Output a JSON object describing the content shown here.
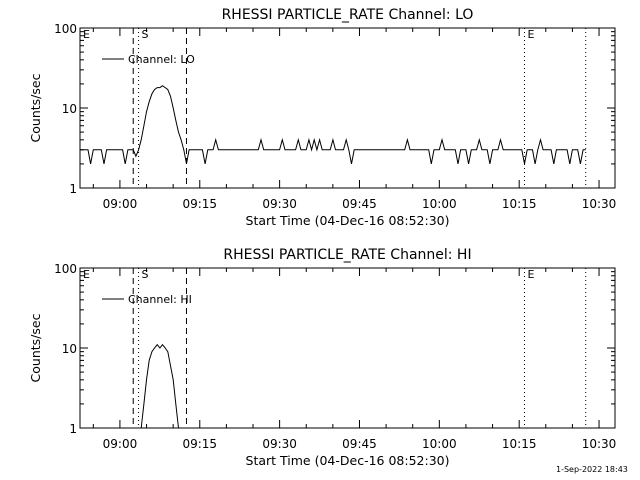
{
  "chart_data": [
    {
      "type": "line",
      "title": "RHESSI PARTICLE_RATE Channel: LO",
      "xlabel": "Start Time (04-Dec-16 08:52:30)",
      "ylabel": "Counts/sec",
      "y_scale": "log",
      "ylim": [
        1,
        100
      ],
      "xlim": [
        "08:52:30",
        "10:33:00"
      ],
      "xticks": [
        "09:00",
        "09:15",
        "09:30",
        "09:45",
        "10:00",
        "10:15",
        "10:30"
      ],
      "yticks": [
        "1",
        "10",
        "100"
      ],
      "legend": {
        "placement": "top-left",
        "entries": [
          "Channel: LO"
        ]
      },
      "markers": [
        {
          "label": "E",
          "time": "08:52:30",
          "style": "dotted"
        },
        {
          "label": "",
          "time": "09:02:30",
          "style": "dashed"
        },
        {
          "label": "S",
          "time": "09:03:30",
          "style": "dotted"
        },
        {
          "label": "",
          "time": "09:12:30",
          "style": "dashed"
        },
        {
          "label": "E",
          "time": "10:16:00",
          "style": "dotted"
        },
        {
          "label": "",
          "time": "10:27:30",
          "style": "dotted"
        }
      ],
      "series": [
        {
          "name": "Channel: LO",
          "points": [
            [
              "08:52:30",
              3
            ],
            [
              "08:54:00",
              3
            ],
            [
              "08:54:30",
              2
            ],
            [
              "08:55:00",
              3
            ],
            [
              "08:56:30",
              3
            ],
            [
              "08:57:00",
              2
            ],
            [
              "08:57:30",
              3
            ],
            [
              "09:00:30",
              3
            ],
            [
              "09:01:00",
              2
            ],
            [
              "09:01:30",
              3
            ],
            [
              "09:02:30",
              3
            ],
            [
              "09:03:00",
              2.5
            ],
            [
              "09:03:30",
              3
            ],
            [
              "09:04:00",
              4
            ],
            [
              "09:04:30",
              6
            ],
            [
              "09:05:00",
              9
            ],
            [
              "09:05:30",
              12
            ],
            [
              "09:06:00",
              15
            ],
            [
              "09:06:30",
              17
            ],
            [
              "09:07:00",
              18
            ],
            [
              "09:07:30",
              18
            ],
            [
              "09:08:00",
              19
            ],
            [
              "09:08:30",
              18
            ],
            [
              "09:09:00",
              17
            ],
            [
              "09:09:30",
              14
            ],
            [
              "09:10:00",
              10
            ],
            [
              "09:10:30",
              7
            ],
            [
              "09:11:00",
              5
            ],
            [
              "09:11:30",
              4
            ],
            [
              "09:12:00",
              3
            ],
            [
              "09:12:30",
              2
            ],
            [
              "09:13:00",
              3
            ],
            [
              "09:15:30",
              3
            ],
            [
              "09:16:00",
              2
            ],
            [
              "09:16:30",
              3
            ],
            [
              "09:17:30",
              3
            ],
            [
              "09:18:00",
              4
            ],
            [
              "09:18:30",
              3
            ],
            [
              "09:26:00",
              3
            ],
            [
              "09:26:30",
              4
            ],
            [
              "09:27:00",
              3
            ],
            [
              "09:30:00",
              3
            ],
            [
              "09:30:30",
              4
            ],
            [
              "09:31:00",
              3
            ],
            [
              "09:33:00",
              3
            ],
            [
              "09:33:30",
              4
            ],
            [
              "09:34:00",
              3
            ],
            [
              "09:35:00",
              3
            ],
            [
              "09:35:30",
              4
            ],
            [
              "09:36:00",
              3
            ],
            [
              "09:36:30",
              4
            ],
            [
              "09:37:00",
              3
            ],
            [
              "09:37:30",
              4
            ],
            [
              "09:38:00",
              3
            ],
            [
              "09:39:30",
              3
            ],
            [
              "09:40:00",
              4
            ],
            [
              "09:40:30",
              3
            ],
            [
              "09:42:00",
              3
            ],
            [
              "09:42:30",
              4
            ],
            [
              "09:43:00",
              3
            ],
            [
              "09:43:30",
              2
            ],
            [
              "09:44:00",
              3
            ],
            [
              "09:53:30",
              3
            ],
            [
              "09:54:00",
              4
            ],
            [
              "09:54:30",
              3
            ],
            [
              "09:58:00",
              3
            ],
            [
              "09:58:30",
              2
            ],
            [
              "09:59:00",
              3
            ],
            [
              "10:00:00",
              3
            ],
            [
              "10:00:30",
              4
            ],
            [
              "10:01:00",
              3
            ],
            [
              "10:03:00",
              3
            ],
            [
              "10:03:30",
              2
            ],
            [
              "10:04:00",
              3
            ],
            [
              "10:05:00",
              3
            ],
            [
              "10:05:30",
              2
            ],
            [
              "10:06:00",
              3
            ],
            [
              "10:07:00",
              3
            ],
            [
              "10:07:30",
              4
            ],
            [
              "10:08:00",
              3
            ],
            [
              "10:09:00",
              3
            ],
            [
              "10:09:30",
              2
            ],
            [
              "10:10:00",
              3
            ],
            [
              "10:11:00",
              3
            ],
            [
              "10:11:30",
              4
            ],
            [
              "10:12:00",
              3
            ],
            [
              "10:15:30",
              3
            ],
            [
              "10:16:00",
              2
            ],
            [
              "10:16:30",
              3
            ],
            [
              "10:17:30",
              3
            ],
            [
              "10:18:00",
              2
            ],
            [
              "10:18:30",
              3
            ],
            [
              "10:19:00",
              4
            ],
            [
              "10:19:30",
              3
            ],
            [
              "10:21:00",
              3
            ],
            [
              "10:21:30",
              2
            ],
            [
              "10:22:00",
              3
            ],
            [
              "10:24:00",
              3
            ],
            [
              "10:24:30",
              2
            ],
            [
              "10:25:00",
              3
            ],
            [
              "10:26:00",
              3
            ],
            [
              "10:26:30",
              2
            ],
            [
              "10:27:00",
              3
            ],
            [
              "10:27:30",
              3
            ]
          ]
        }
      ]
    },
    {
      "type": "line",
      "title": "RHESSI PARTICLE_RATE Channel: HI",
      "xlabel": "Start Time (04-Dec-16 08:52:30)",
      "ylabel": "Counts/sec",
      "y_scale": "log",
      "ylim": [
        1,
        100
      ],
      "xlim": [
        "08:52:30",
        "10:33:00"
      ],
      "xticks": [
        "09:00",
        "09:15",
        "09:30",
        "09:45",
        "10:00",
        "10:15",
        "10:30"
      ],
      "yticks": [
        "1",
        "10",
        "100"
      ],
      "legend": {
        "placement": "top-left",
        "entries": [
          "Channel: HI"
        ]
      },
      "markers": [
        {
          "label": "E",
          "time": "08:52:30",
          "style": "dotted"
        },
        {
          "label": "",
          "time": "09:02:30",
          "style": "dashed"
        },
        {
          "label": "S",
          "time": "09:03:30",
          "style": "dotted"
        },
        {
          "label": "",
          "time": "09:12:30",
          "style": "dashed"
        },
        {
          "label": "E",
          "time": "10:16:00",
          "style": "dotted"
        },
        {
          "label": "",
          "time": "10:27:30",
          "style": "dotted"
        }
      ],
      "series": [
        {
          "name": "Channel: HI",
          "points": [
            [
              "09:04:00",
              1
            ],
            [
              "09:04:30",
              2
            ],
            [
              "09:05:00",
              4
            ],
            [
              "09:05:30",
              7
            ],
            [
              "09:06:00",
              9
            ],
            [
              "09:06:30",
              10
            ],
            [
              "09:07:00",
              11
            ],
            [
              "09:07:30",
              10
            ],
            [
              "09:08:00",
              11
            ],
            [
              "09:08:30",
              10
            ],
            [
              "09:09:00",
              9
            ],
            [
              "09:09:30",
              6
            ],
            [
              "09:10:00",
              4
            ],
            [
              "09:10:30",
              2
            ],
            [
              "09:11:00",
              1
            ]
          ]
        }
      ]
    }
  ],
  "footer": {
    "date_stamp": "1-Sep-2022 18:43"
  }
}
